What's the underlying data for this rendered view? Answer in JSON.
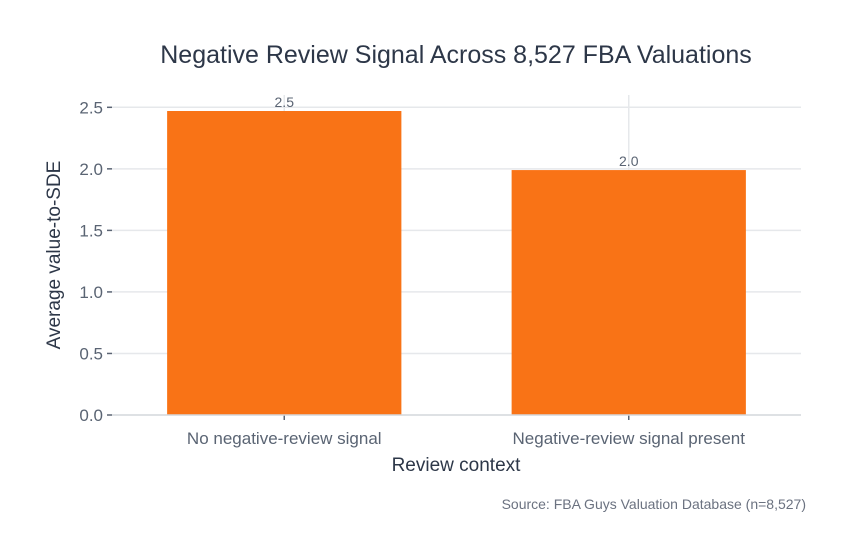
{
  "chart_data": {
    "type": "bar",
    "title": "Negative Review Signal Across 8,527 FBA Valuations",
    "xlabel": "Review context",
    "ylabel": "Average value-to-SDE",
    "categories": [
      "No negative-review signal",
      "Negative-review signal present"
    ],
    "values": [
      2.47,
      1.99
    ],
    "data_labels": [
      "2.5",
      "2.0"
    ],
    "ylim": [
      0,
      2.6
    ],
    "yticks": [
      "0.0",
      "0.5",
      "1.0",
      "1.5",
      "2.0",
      "2.5"
    ],
    "grid": true,
    "bar_color": "#f97316",
    "source": "Source: FBA Guys Valuation Database (n=8,527)"
  }
}
